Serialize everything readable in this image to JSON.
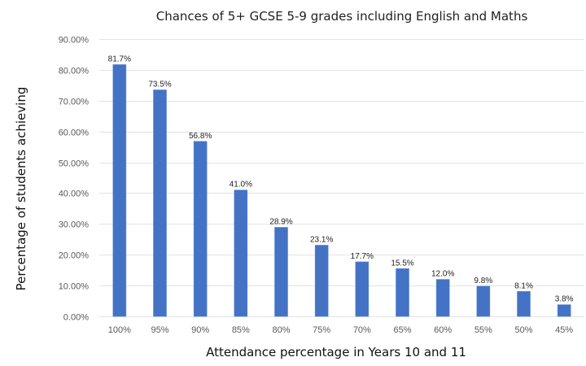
{
  "chart_data": {
    "type": "bar",
    "title": "Chances of 5+ GCSE 5-9 grades including English and Maths",
    "xlabel": "Attendance percentage in Years 10 and 11",
    "ylabel": "Percentage of students achieving",
    "categories": [
      "100%",
      "95%",
      "90%",
      "85%",
      "80%",
      "75%",
      "70%",
      "65%",
      "60%",
      "55%",
      "50%",
      "45%"
    ],
    "values": [
      81.7,
      73.5,
      56.8,
      41.0,
      28.9,
      23.1,
      17.7,
      15.5,
      12.0,
      9.8,
      8.1,
      3.8
    ],
    "data_labels": [
      "81.7%",
      "73.5%",
      "56.8%",
      "41.0%",
      "28.9%",
      "23.1%",
      "17.7%",
      "15.5%",
      "12.0%",
      "9.8%",
      "8.1%",
      "3.8%"
    ],
    "ylim": [
      0,
      90
    ],
    "yticks": [
      0,
      10,
      20,
      30,
      40,
      50,
      60,
      70,
      80,
      90
    ],
    "ytick_labels": [
      "0.00%",
      "10.00%",
      "20.00%",
      "30.00%",
      "40.00%",
      "50.00%",
      "60.00%",
      "70.00%",
      "80.00%",
      "90.00%"
    ],
    "grid": true,
    "legend": "none",
    "bar_color": "#4472c4"
  }
}
